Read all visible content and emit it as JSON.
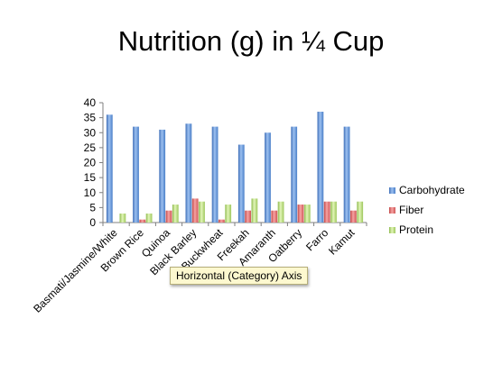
{
  "title": "Nutrition (g) in ¼ Cup",
  "tooltip": "Horizontal (Category) Axis",
  "colors": {
    "Carbohydrate": "#5b8fd6",
    "Fiber": "#e06a6a",
    "Protein": "#b6d97a"
  },
  "chart_data": {
    "type": "bar",
    "title": "Nutrition (g) in ¼ Cup",
    "xlabel": "",
    "ylabel": "",
    "ylim": [
      0,
      40
    ],
    "yticks": [
      0,
      5,
      10,
      15,
      20,
      25,
      30,
      35,
      40
    ],
    "grid": false,
    "legend": "right",
    "categories": [
      "Basmati/Jasmine/White",
      "Brown Rice",
      "Quinoa",
      "Black Barley",
      "Buckwheat",
      "Freekah",
      "Amaranth",
      "Oatberry",
      "Farro",
      "Kamut"
    ],
    "series": [
      {
        "name": "Carbohydrate",
        "values": [
          36,
          32,
          31,
          33,
          32,
          26,
          30,
          32,
          37,
          32
        ]
      },
      {
        "name": "Fiber",
        "values": [
          0,
          1,
          4,
          8,
          1,
          4,
          4,
          6,
          7,
          4
        ]
      },
      {
        "name": "Protein",
        "values": [
          3,
          3,
          6,
          7,
          6,
          8,
          7,
          6,
          7,
          7
        ]
      }
    ]
  }
}
